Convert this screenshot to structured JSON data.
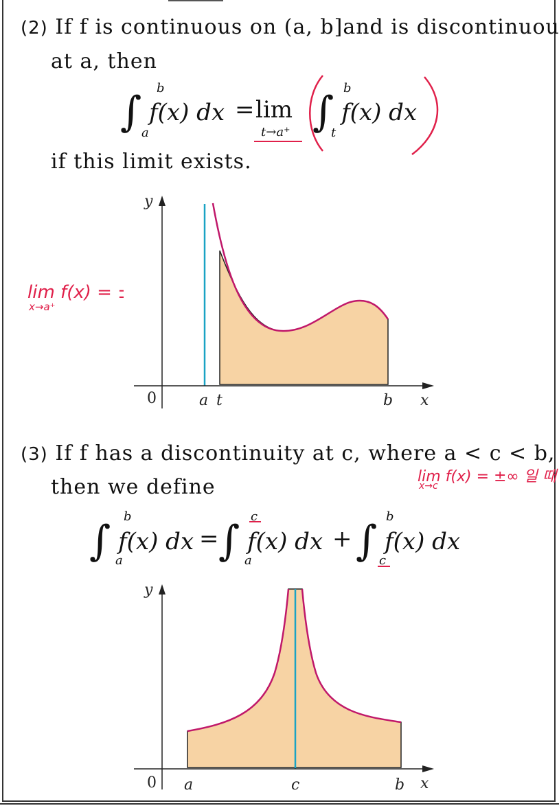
{
  "section2": {
    "number": "(2)",
    "text_line1": "If  f  is  continuous  on  (a, b]and  is  discontinuous",
    "text_line2": "at  a,  then",
    "formula": {
      "lhs": "f(x) dx",
      "int_upper": "b",
      "int_lower": "a",
      "eq": "=",
      "lim": "lim",
      "lim_sub": "t→a⁺",
      "rhs": "f(x) dx",
      "rhs_upper": "b",
      "rhs_lower": "t"
    },
    "text_after": "if this limit exists.",
    "annotation": {
      "line1": "lim f(x) = ±∞일 때",
      "line2": "x→a⁺"
    },
    "graph": {
      "ylabel": "y",
      "xlabel": "x",
      "origin": "0",
      "ticks": [
        "a",
        "t",
        "b"
      ]
    }
  },
  "section3": {
    "number": "(3)",
    "text_line1": "If  f  has  a  discontinuity  at  c,  where  a < c < b,",
    "text_line2": "then  we  define",
    "formula": {
      "t1": "f(x) dx",
      "t1_upper": "b",
      "t1_lower": "a",
      "eq": "=",
      "t2": "f(x) dx",
      "t2_upper": "c",
      "t2_lower": "a",
      "plus": "+",
      "t3": "f(x) dx",
      "t3_upper": "b",
      "t3_lower": "c"
    },
    "annotation": {
      "line1": "lim f(x) = ±∞ 일 때",
      "line2": "x→c"
    },
    "graph": {
      "ylabel": "y",
      "xlabel": "x",
      "origin": "0",
      "ticks": [
        "a",
        "c",
        "b"
      ]
    }
  },
  "colors": {
    "fill": "#f7d3a4",
    "curve": "#c0186a",
    "asymptote": "#1aa3c4",
    "ink": "#e0204a"
  }
}
